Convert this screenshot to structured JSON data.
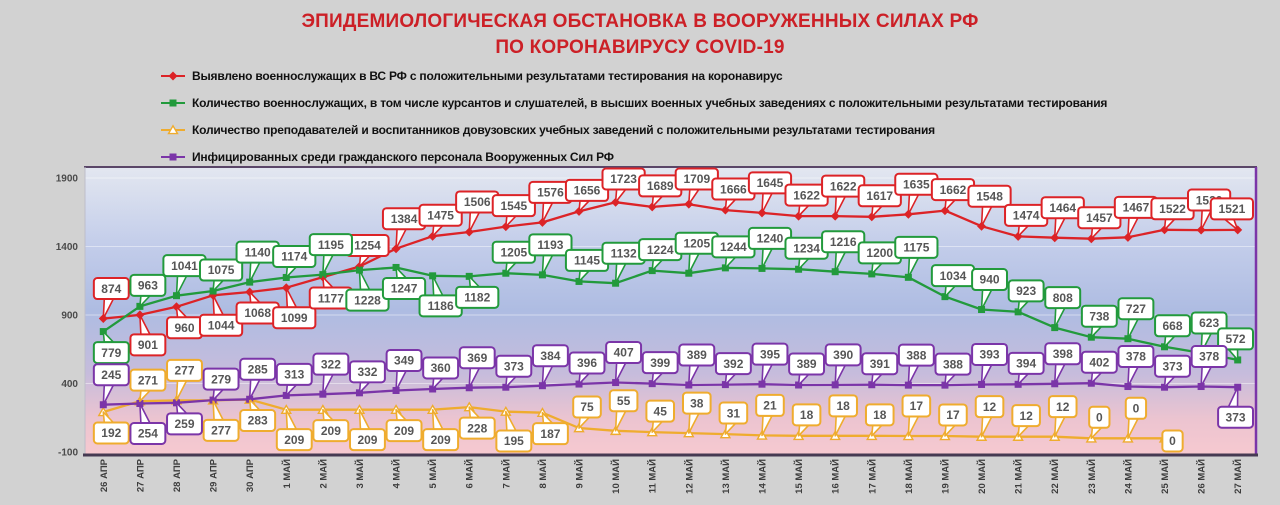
{
  "title": {
    "line1": "ЭПИДЕМИОЛОГИЧЕСКАЯ ОБСТАНОВКА В ВООРУЖЕННЫХ СИЛАХ РФ",
    "line2": "ПО КОРОНАВИРУСУ COVID-19"
  },
  "colors": {
    "title": "#cc2027",
    "page_bg": "#d2d2d2",
    "axis_text": "#3d3d3d",
    "callout_text": "#565656",
    "axis_line": "#463a52",
    "right_border": "#7b35a8",
    "red": "#dc2327",
    "green": "#229a3c",
    "orange": "#efac2e",
    "purple": "#7b35a8"
  },
  "chart_data": {
    "type": "line",
    "categories": [
      "26 АПР",
      "27 АПР",
      "28 АПР",
      "29 АПР",
      "30 АПР",
      "1 МАЙ",
      "2 МАЙ",
      "3 МАЙ",
      "4 МАЙ",
      "5 МАЙ",
      "6 МАЙ",
      "7 МАЙ",
      "8 МАЙ",
      "9 МАЙ",
      "10 МАЙ",
      "11 МАЙ",
      "12 МАЙ",
      "13 МАЙ",
      "14 МАЙ",
      "15 МАЙ",
      "16 МАЙ",
      "17 МАЙ",
      "18 МАЙ",
      "19 МАЙ",
      "20 МАЙ",
      "21 МАЙ",
      "22 МАЙ",
      "23 МАЙ",
      "24 МАЙ",
      "25 МАЙ",
      "26 МАЙ",
      "27 МАЙ"
    ],
    "yticks": [
      1900,
      1400,
      900,
      400,
      -100
    ],
    "ylim": [
      -100,
      1900
    ],
    "grid": "faint-horizontal",
    "legend_position": "top-left",
    "plot_background_gradient": [
      "#e3e7f0",
      "#c3cdea",
      "#aebce2",
      "#c6bcdc",
      "#ecc4d0",
      "#f6c9d0"
    ],
    "series": [
      {
        "name": "Выявлено военнослужащих в ВС РФ с положительными результатами тестирования на коронавирус",
        "color": "#dc2327",
        "marker": "diamond",
        "values": [
          874,
          901,
          960,
          1044,
          1068,
          1099,
          1177,
          1254,
          1384,
          1475,
          1506,
          1545,
          1576,
          1656,
          1723,
          1689,
          1709,
          1666,
          1645,
          1622,
          1622,
          1617,
          1635,
          1662,
          1548,
          1474,
          1464,
          1457,
          1467,
          1522,
          1520,
          1521
        ],
        "label_side": [
          "above",
          "below",
          "below",
          "below",
          "below",
          "below",
          "below",
          "above",
          "above",
          "above",
          "above",
          "above",
          "above",
          "above",
          "above",
          "above",
          "above",
          "above",
          "above",
          "above",
          "above",
          "above",
          "above",
          "above",
          "above",
          "above",
          "above",
          "above",
          "above",
          "above",
          "above",
          "above"
        ]
      },
      {
        "name": "Количество военнослужащих, в том числе курсантов и слушателей, в высших военных учебных заведениях с положительными результатами тестирования",
        "color": "#229a3c",
        "marker": "square",
        "values": [
          779,
          963,
          1041,
          1075,
          1140,
          1174,
          1195,
          1228,
          1247,
          1186,
          1182,
          1205,
          1193,
          1145,
          1132,
          1224,
          1205,
          1244,
          1240,
          1234,
          1216,
          1200,
          1175,
          1034,
          940,
          923,
          808,
          738,
          727,
          668,
          623,
          572
        ],
        "label_side": [
          "below",
          "above",
          "above",
          "above",
          "above",
          "above",
          "above",
          "below",
          "below",
          "below",
          "below",
          "above",
          "above",
          "above",
          "above",
          "above",
          "above",
          "above",
          "above",
          "above",
          "above",
          "above",
          "above",
          "above",
          "above",
          "above",
          "above",
          "above",
          "above",
          "above",
          "above",
          "above"
        ]
      },
      {
        "name": "Количество преподавателей и воспитанников довузовских учебных заведений с положительными результатами тестирования",
        "color": "#efac2e",
        "marker": "triangle",
        "values": [
          192,
          271,
          277,
          277,
          283,
          209,
          209,
          209,
          209,
          209,
          228,
          195,
          187,
          75,
          55,
          45,
          38,
          31,
          21,
          18,
          18,
          18,
          17,
          17,
          12,
          12,
          12,
          0,
          0,
          0
        ],
        "label_side": [
          "below",
          "above",
          "above",
          "below",
          "below",
          "below",
          "below",
          "below",
          "below",
          "below",
          "below",
          "below",
          "below",
          "above",
          "above",
          "above",
          "above",
          "above",
          "above",
          "above",
          "above",
          "above",
          "above",
          "above",
          "above",
          "above",
          "above",
          "above",
          "above",
          "below"
        ]
      },
      {
        "name": "Инфицированных среди гражданского персонала Вооруженных Сил РФ",
        "color": "#7b35a8",
        "marker": "square",
        "values": [
          245,
          254,
          259,
          279,
          285,
          313,
          322,
          332,
          349,
          360,
          369,
          373,
          384,
          396,
          407,
          399,
          389,
          392,
          395,
          389,
          390,
          391,
          388,
          388,
          393,
          394,
          398,
          402,
          378,
          373,
          378,
          373
        ],
        "label_side": [
          "above",
          "below",
          "below",
          "above",
          "above",
          "above",
          "above",
          "above",
          "above",
          "above",
          "above",
          "above",
          "above",
          "above",
          "above",
          "above",
          "above",
          "above",
          "above",
          "above",
          "above",
          "above",
          "above",
          "above",
          "above",
          "above",
          "above",
          "above",
          "above",
          "above",
          "above",
          "below"
        ]
      }
    ]
  }
}
